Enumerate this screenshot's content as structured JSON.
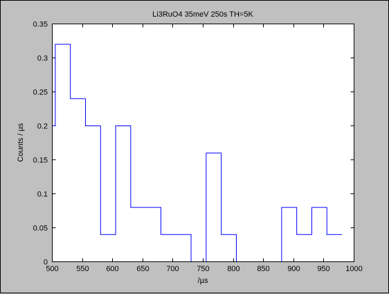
{
  "colors": {
    "figure_background": "#c0c0c0",
    "axes_background": "#ffffff",
    "axis": "#000000",
    "series": "#0000ff"
  },
  "chart_data": {
    "type": "line",
    "step": "histogram",
    "title": "Li3RuO4 35meV 250s TH=5K",
    "xlabel": "/µs",
    "ylabel": "Counts / µs",
    "xlim": [
      500,
      1000
    ],
    "ylim": [
      0,
      0.35
    ],
    "xticks": [
      500,
      550,
      600,
      650,
      700,
      750,
      800,
      850,
      900,
      950,
      1000
    ],
    "yticks": [
      0,
      0.05,
      0.1,
      0.15,
      0.2,
      0.25,
      0.3,
      0.35
    ],
    "xtick_labels": [
      "500",
      "550",
      "600",
      "650",
      "700",
      "750",
      "800",
      "850",
      "900",
      "950",
      "1000"
    ],
    "ytick_labels": [
      "0",
      "0.05",
      "0.1",
      "0.15",
      "0.2",
      "0.25",
      "0.3",
      "0.35"
    ],
    "grid": false,
    "box": true,
    "bin_edges": [
      505,
      530,
      555,
      580,
      605,
      630,
      655,
      680,
      705,
      730,
      755,
      780,
      805,
      830,
      855,
      880,
      905,
      930,
      955,
      980
    ],
    "values": [
      0.32,
      0.24,
      0.2,
      0.04,
      0.2,
      0.08,
      0.08,
      0.04,
      0.04,
      0.0,
      0.16,
      0.04,
      0.0,
      0.0,
      0.0,
      0.08,
      0.04,
      0.08,
      0.04
    ],
    "start": {
      "x": 500,
      "y": 0.2
    }
  }
}
